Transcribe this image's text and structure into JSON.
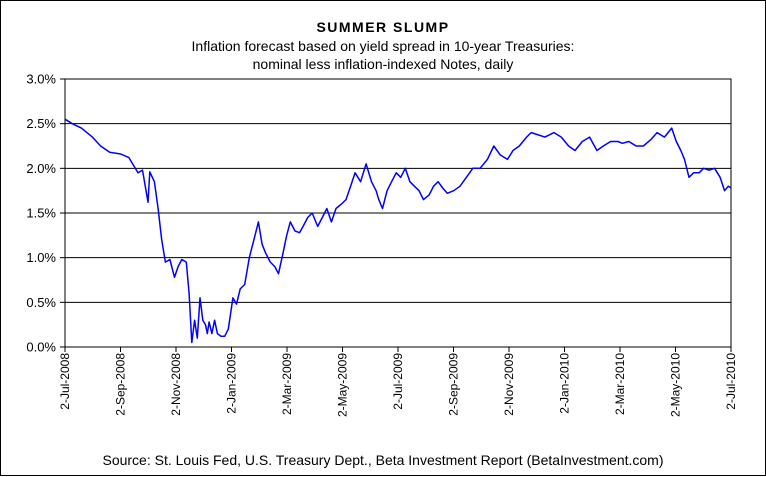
{
  "chart_data": {
    "type": "line",
    "title": "SUMMER SLUMP",
    "subtitle_lines": [
      "Inflation forecast based on yield spread in 10-year Treasuries:",
      "nominal less inflation-indexed Notes, daily"
    ],
    "source": "Source: St. Louis Fed, U.S. Treasury Dept., Beta Investment Report (BetaInvestment.com)",
    "xlabel": "",
    "ylabel": "",
    "ylim": [
      0,
      3
    ],
    "y_ticks": [
      "0.0%",
      "0.5%",
      "1.0%",
      "1.5%",
      "2.0%",
      "2.5%",
      "3.0%"
    ],
    "x_ticks": [
      "2-Jul-2008",
      "2-Sep-2008",
      "2-Nov-2008",
      "2-Jan-2009",
      "2-Mar-2009",
      "2-May-2009",
      "2-Jul-2009",
      "2-Sep-2009",
      "2-Nov-2009",
      "2-Jan-2010",
      "2-Mar-2010",
      "2-May-2010",
      "2-Jul-2010"
    ],
    "grid": "horizontal",
    "line_color": "#0000ff",
    "series": [
      {
        "x": [
          "2008-07-02",
          "2008-07-10",
          "2008-07-20",
          "2008-08-01",
          "2008-08-10",
          "2008-08-20",
          "2008-09-01",
          "2008-09-10",
          "2008-09-20",
          "2008-09-25",
          "2008-10-01",
          "2008-10-03",
          "2008-10-08",
          "2008-10-12",
          "2008-10-16",
          "2008-10-20",
          "2008-10-25",
          "2008-10-30",
          "2008-11-03",
          "2008-11-07",
          "2008-11-12",
          "2008-11-15",
          "2008-11-18",
          "2008-11-21",
          "2008-11-24",
          "2008-11-27",
          "2008-11-30",
          "2008-12-03",
          "2008-12-05",
          "2008-12-07",
          "2008-12-10",
          "2008-12-13",
          "2008-12-16",
          "2008-12-20",
          "2008-12-24",
          "2008-12-28",
          "2009-01-02",
          "2009-01-06",
          "2009-01-10",
          "2009-01-15",
          "2009-01-20",
          "2009-01-25",
          "2009-01-30",
          "2009-02-03",
          "2009-02-07",
          "2009-02-12",
          "2009-02-17",
          "2009-02-21",
          "2009-02-26",
          "2009-03-02",
          "2009-03-06",
          "2009-03-11",
          "2009-03-16",
          "2009-03-20",
          "2009-03-25",
          "2009-03-30",
          "2009-04-05",
          "2009-04-10",
          "2009-04-15",
          "2009-04-20",
          "2009-04-25",
          "2009-05-01",
          "2009-05-06",
          "2009-05-11",
          "2009-05-16",
          "2009-05-22",
          "2009-05-28",
          "2009-06-03",
          "2009-06-08",
          "2009-06-11",
          "2009-06-15",
          "2009-06-20",
          "2009-06-25",
          "2009-06-30",
          "2009-07-05",
          "2009-07-10",
          "2009-07-15",
          "2009-07-20",
          "2009-07-25",
          "2009-07-30",
          "2009-08-05",
          "2009-08-10",
          "2009-08-15",
          "2009-08-20",
          "2009-08-25",
          "2009-09-01",
          "2009-09-08",
          "2009-09-15",
          "2009-09-22",
          "2009-09-30",
          "2009-10-08",
          "2009-10-15",
          "2009-10-22",
          "2009-10-30",
          "2009-11-05",
          "2009-11-12",
          "2009-11-20",
          "2009-11-25",
          "2009-12-01",
          "2009-12-10",
          "2009-12-20",
          "2009-12-28",
          "2010-01-05",
          "2010-01-12",
          "2010-01-20",
          "2010-01-28",
          "2010-02-05",
          "2010-02-12",
          "2010-02-20",
          "2010-02-28",
          "2010-03-05",
          "2010-03-12",
          "2010-03-20",
          "2010-03-28",
          "2010-04-05",
          "2010-04-12",
          "2010-04-20",
          "2010-04-28",
          "2010-05-03",
          "2010-05-08",
          "2010-05-12",
          "2010-05-17",
          "2010-05-22",
          "2010-05-28",
          "2010-06-02",
          "2010-06-08",
          "2010-06-14",
          "2010-06-20",
          "2010-06-25",
          "2010-06-29",
          "2010-07-02"
        ],
        "values": [
          2.55,
          2.5,
          2.45,
          2.35,
          2.25,
          2.18,
          2.16,
          2.12,
          1.95,
          1.98,
          1.62,
          1.96,
          1.85,
          1.55,
          1.2,
          0.95,
          0.98,
          0.78,
          0.9,
          0.98,
          0.95,
          0.6,
          0.05,
          0.3,
          0.1,
          0.55,
          0.3,
          0.25,
          0.15,
          0.28,
          0.15,
          0.3,
          0.15,
          0.12,
          0.12,
          0.2,
          0.55,
          0.48,
          0.65,
          0.7,
          1.0,
          1.2,
          1.4,
          1.15,
          1.05,
          0.95,
          0.9,
          0.82,
          1.05,
          1.25,
          1.4,
          1.3,
          1.28,
          1.35,
          1.45,
          1.5,
          1.35,
          1.45,
          1.55,
          1.4,
          1.55,
          1.6,
          1.65,
          1.8,
          1.95,
          1.85,
          2.05,
          1.85,
          1.75,
          1.65,
          1.55,
          1.75,
          1.85,
          1.95,
          1.9,
          2.0,
          1.85,
          1.8,
          1.75,
          1.65,
          1.7,
          1.8,
          1.85,
          1.78,
          1.72,
          1.75,
          1.8,
          1.9,
          2.0,
          2.0,
          2.1,
          2.25,
          2.15,
          2.1,
          2.2,
          2.25,
          2.35,
          2.4,
          2.38,
          2.35,
          2.4,
          2.35,
          2.25,
          2.2,
          2.3,
          2.35,
          2.2,
          2.25,
          2.3,
          2.3,
          2.28,
          2.3,
          2.25,
          2.25,
          2.32,
          2.4,
          2.35,
          2.45,
          2.3,
          2.2,
          2.1,
          1.9,
          1.95,
          1.95,
          2.0,
          1.98,
          2.0,
          1.9,
          1.75,
          1.8,
          1.78
        ]
      }
    ]
  }
}
